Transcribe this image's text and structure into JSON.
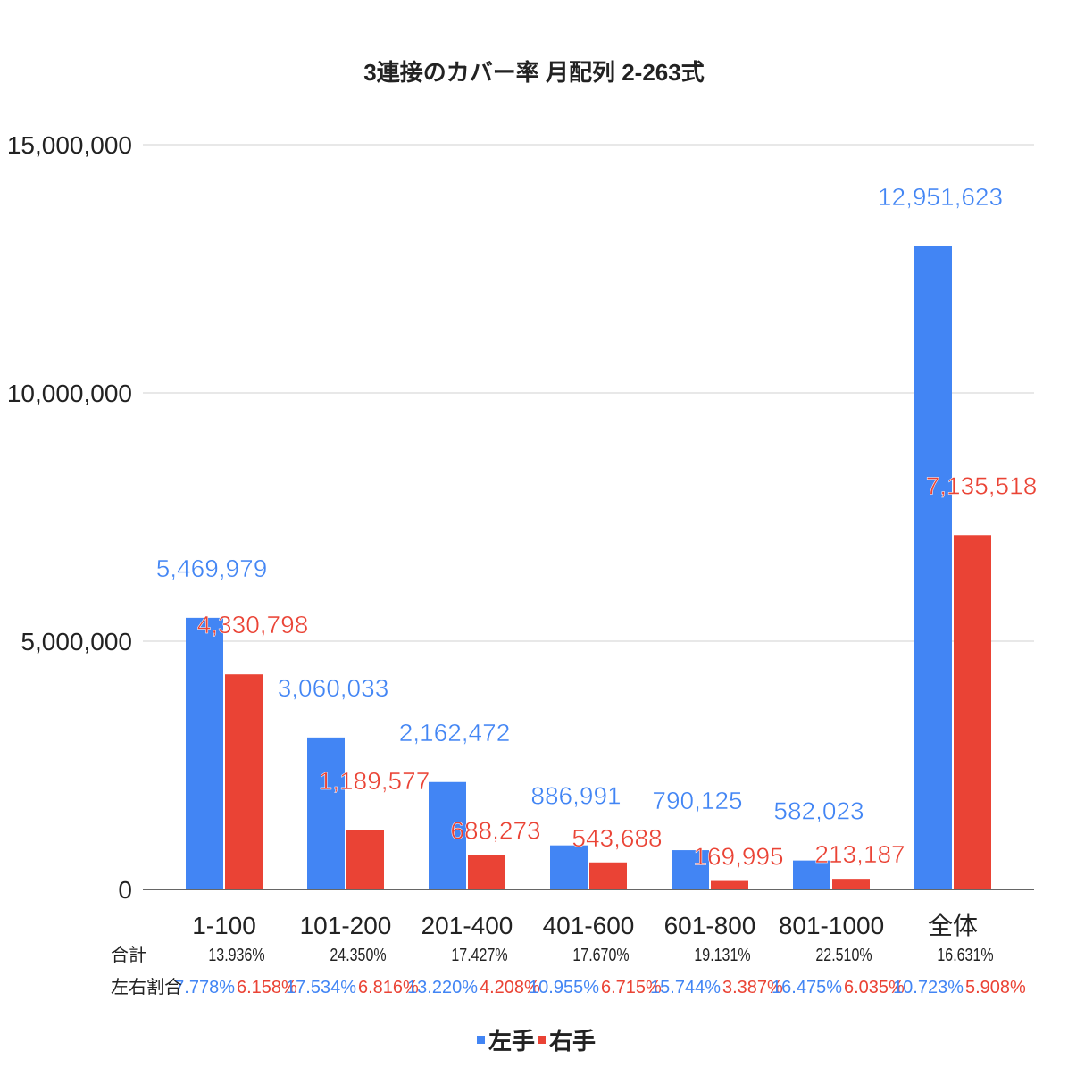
{
  "chart_data": {
    "type": "bar",
    "title": "3連接のカバー率 月配列 2-263式",
    "categories": [
      "1-100",
      "101-200",
      "201-400",
      "401-600",
      "601-800",
      "801-1000",
      "全体"
    ],
    "series": [
      {
        "name": "左手",
        "color": "#4285f4",
        "values": [
          5469979,
          3060033,
          2162472,
          886991,
          790125,
          582023,
          12951623
        ],
        "labels": [
          "5,469,979",
          "3,060,033",
          "2,162,472",
          "886,991",
          "790,125",
          "582,023",
          "12,951,623"
        ]
      },
      {
        "name": "右手",
        "color": "#ea4335",
        "values": [
          4330798,
          1189577,
          688273,
          543688,
          169995,
          213187,
          7135518
        ],
        "labels": [
          "4,330,798",
          "1,189,577",
          "688,273",
          "543,688",
          "169,995",
          "213,187",
          "7,135,518"
        ]
      }
    ],
    "ylim": [
      0,
      15000000
    ],
    "yticks": [
      0,
      5000000,
      10000000,
      15000000
    ],
    "ytick_labels": [
      "0",
      "5,000,000",
      "10,000,000",
      "15,000,000"
    ],
    "grid": true,
    "legend": "bottom",
    "table": {
      "total_label": "合計",
      "ratio_label": "左右割合",
      "totals": [
        "13.936%",
        "24.350%",
        "17.427%",
        "17.670%",
        "19.131%",
        "22.510%",
        "16.631%"
      ],
      "left_ratio": [
        "7.778%",
        "17.534%",
        "13.220%",
        "10.955%",
        "15.744%",
        "16.475%",
        "10.723%"
      ],
      "right_ratio": [
        "6.158%",
        "6.816%",
        "4.208%",
        "6.715%",
        "3.387%",
        "6.035%",
        "5.908%"
      ]
    }
  }
}
